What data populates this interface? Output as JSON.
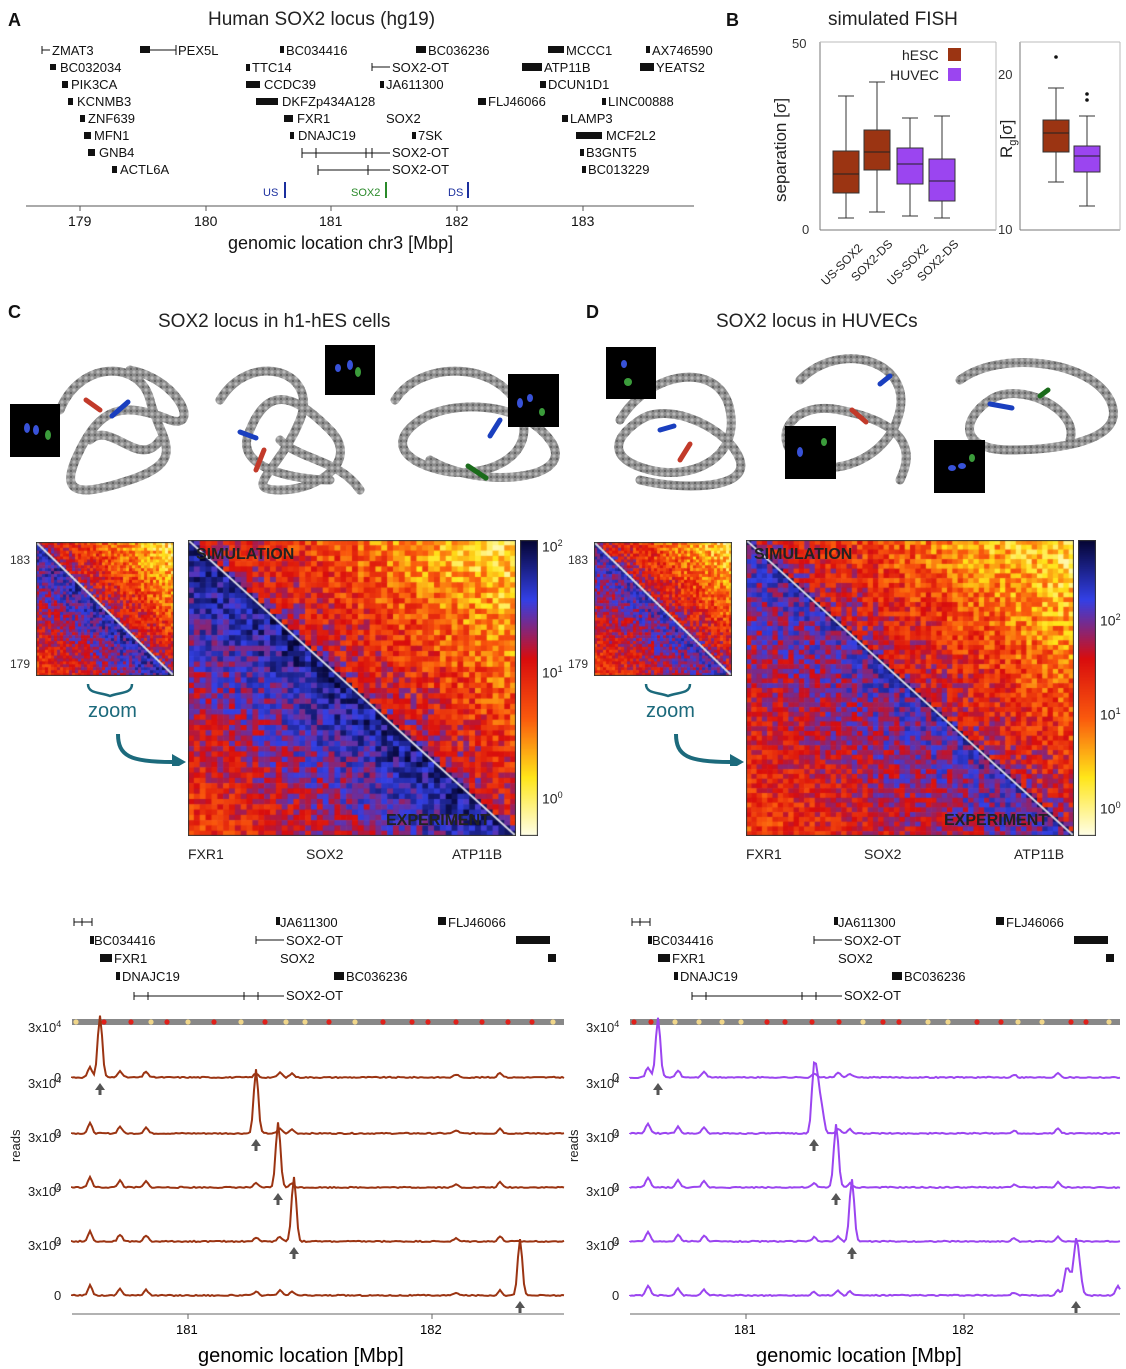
{
  "panelA": {
    "letter": "A",
    "title": "Human SOX2 locus (hg19)",
    "axis_label": "genomic location chr3 [Mbp]",
    "ticks": [
      "179",
      "180",
      "181",
      "182",
      "183"
    ],
    "markers": [
      {
        "label": "US",
        "color": "#1b2f9e"
      },
      {
        "label": "SOX2",
        "color": "#2a8a2a"
      },
      {
        "label": "DS",
        "color": "#1b2f9e"
      }
    ],
    "genes": {
      "col1": [
        "ZMAT3",
        "BC032034",
        "PIK3CA",
        "KCNMB3",
        "ZNF639",
        "MFN1",
        "GNB4",
        "ACTL6A"
      ],
      "pex5l": "PEX5L",
      "col2": [
        "BC034416",
        "TTC14",
        "CCDC39",
        "DKFZp434A128",
        "FXR1",
        "DNAJC19"
      ],
      "col3": [
        "BC036236",
        "SOX2-OT",
        "JA611300",
        "SOX2",
        "7SK",
        "SOX2-OT",
        "SOX2-OT"
      ],
      "flj": "FLJ46066",
      "col4": [
        "MCCC1",
        "ATP11B",
        "DCUN1D1",
        "LAMP3",
        "MCF2L2",
        "B3GNT5",
        "BC013229"
      ],
      "col5": [
        "AX746590",
        "YEATS2",
        "LINC00888"
      ]
    }
  },
  "panelB": {
    "letter": "B",
    "title": "simulated FISH",
    "ylabel_left": "separation [σ]",
    "ylabel_right_main": "R",
    "ylabel_right_sub": "g",
    "ylabel_right_tail": "[σ]",
    "left_ticks": [
      "50",
      "0"
    ],
    "right_ticks": [
      "20",
      "10"
    ],
    "legend": [
      {
        "label": "hESC",
        "color": "#9b3412"
      },
      {
        "label": "HUVEC",
        "color": "#9b45f0"
      }
    ],
    "categories": [
      "US-SOX2",
      "SOX2-DS",
      "US-SOX2",
      "SOX2-DS"
    ]
  },
  "panelC": {
    "letter": "C",
    "title": "SOX2 locus in h1-hES cells",
    "inset_ticks": [
      "183",
      "179"
    ],
    "zoom": "zoom",
    "sim_label": "SIMULATION",
    "exp_label": "EXPERIMENT",
    "colorbar": [
      "10",
      "2",
      "10",
      "1",
      "10",
      "0"
    ],
    "bottom_labels": [
      "FXR1",
      "SOX2",
      "ATP11B"
    ]
  },
  "panelD": {
    "letter": "D",
    "title": "SOX2 locus in HUVECs",
    "inset_ticks": [
      "183",
      "179"
    ],
    "zoom": "zoom",
    "sim_label": "SIMULATION",
    "exp_label": "EXPERIMENT",
    "colorbar": [
      "10",
      "2",
      "10",
      "1",
      "10",
      "0"
    ],
    "bottom_labels": [
      "FXR1",
      "SOX2",
      "ATP11B"
    ]
  },
  "tracks": {
    "genes": [
      "JA611300",
      "FLJ46066",
      "BC034416",
      "SOX2-OT",
      "FXR1",
      "SOX2",
      "DNAJC19",
      "BC036236",
      "SOX2-OT"
    ],
    "ylabel": "reads",
    "ytick_top": "3x10",
    "ytick_sup": "4",
    "ytick_zero": "0",
    "xticks": [
      "181",
      "182"
    ],
    "xlabel": "genomic location [Mbp]",
    "left_color": "#9b3412",
    "right_color": "#9b45f0"
  }
}
